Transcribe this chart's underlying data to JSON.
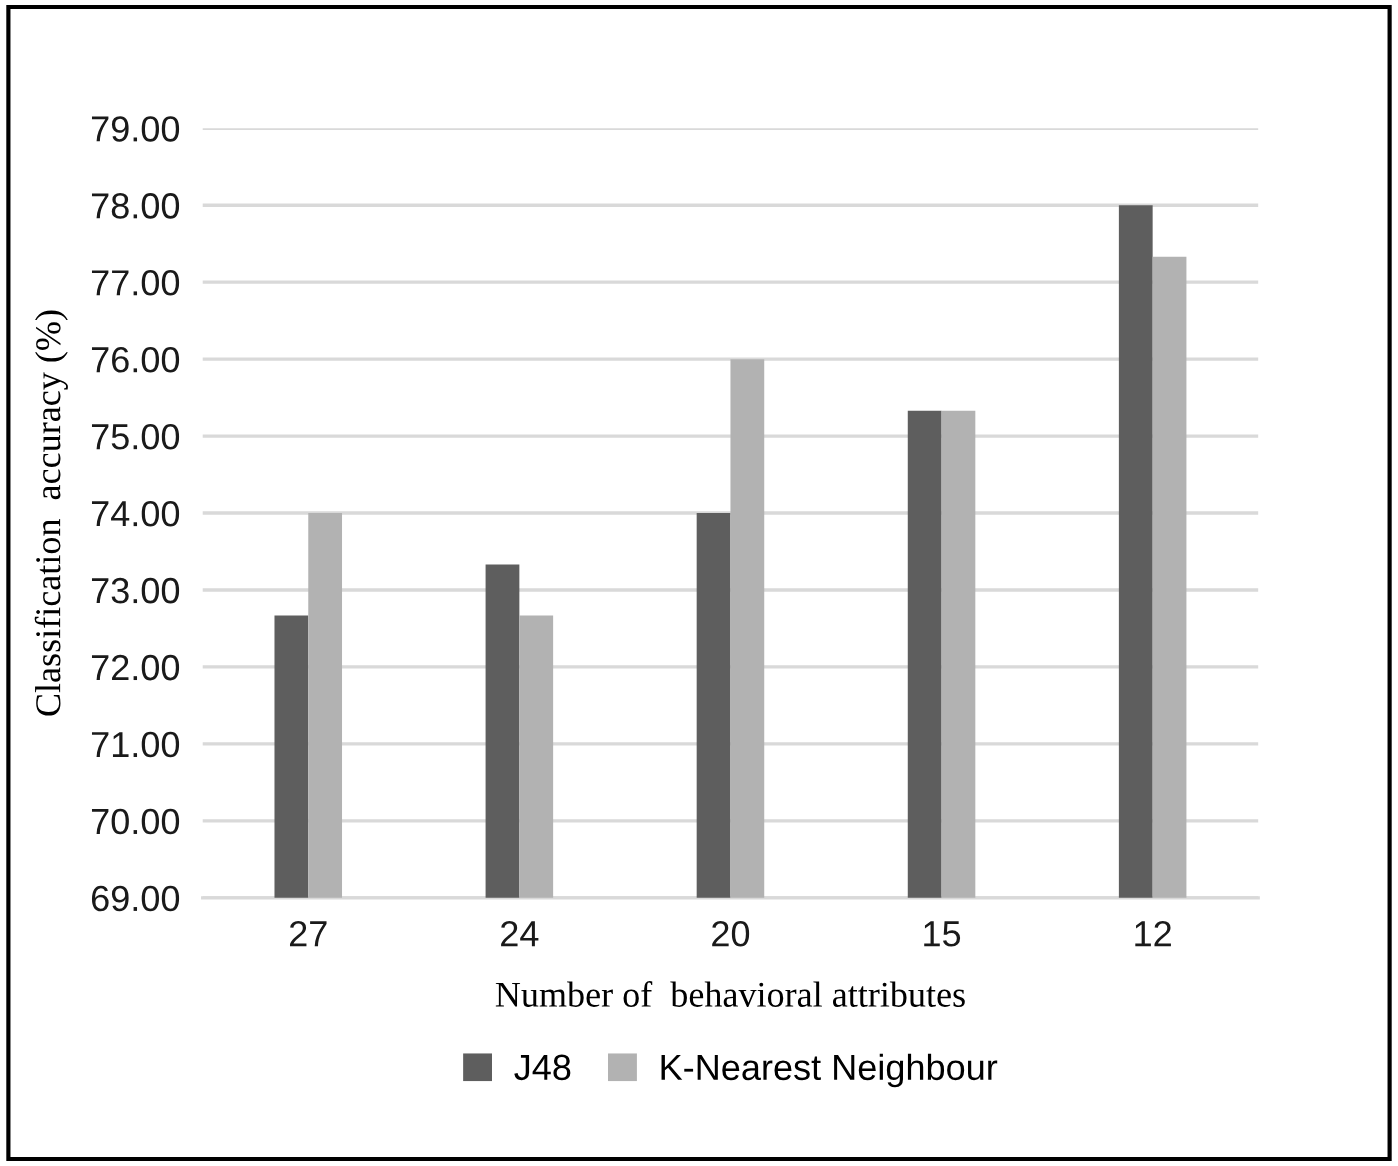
{
  "chart_data": {
    "type": "bar",
    "xlabel": "Number of  behavioral attributes",
    "ylabel": "Classification  accuracy (%)",
    "categories": [
      "27",
      "24",
      "20",
      "15",
      "12"
    ],
    "series": [
      {
        "name": "J48",
        "color": "#5e5e5e",
        "values": [
          72.67,
          73.33,
          74.0,
          75.33,
          78.0
        ]
      },
      {
        "name": "K-Nearest Neighbour",
        "color": "#b2b2b2",
        "values": [
          74.0,
          72.67,
          76.0,
          75.33,
          77.33
        ]
      }
    ],
    "ylim": [
      69,
      79
    ],
    "yticks": [
      {
        "value": 69,
        "label": "69.00"
      },
      {
        "value": 70,
        "label": "70.00"
      },
      {
        "value": 71,
        "label": "71.00"
      },
      {
        "value": 72,
        "label": "72.00"
      },
      {
        "value": 73,
        "label": "73.00"
      },
      {
        "value": 74,
        "label": "74.00"
      },
      {
        "value": 75,
        "label": "75.00"
      },
      {
        "value": 76,
        "label": "76.00"
      },
      {
        "value": 77,
        "label": "77.00"
      },
      {
        "value": 78,
        "label": "78.00"
      },
      {
        "value": 79,
        "label": "79.00"
      }
    ],
    "grid": "y",
    "legend": "bottom"
  }
}
